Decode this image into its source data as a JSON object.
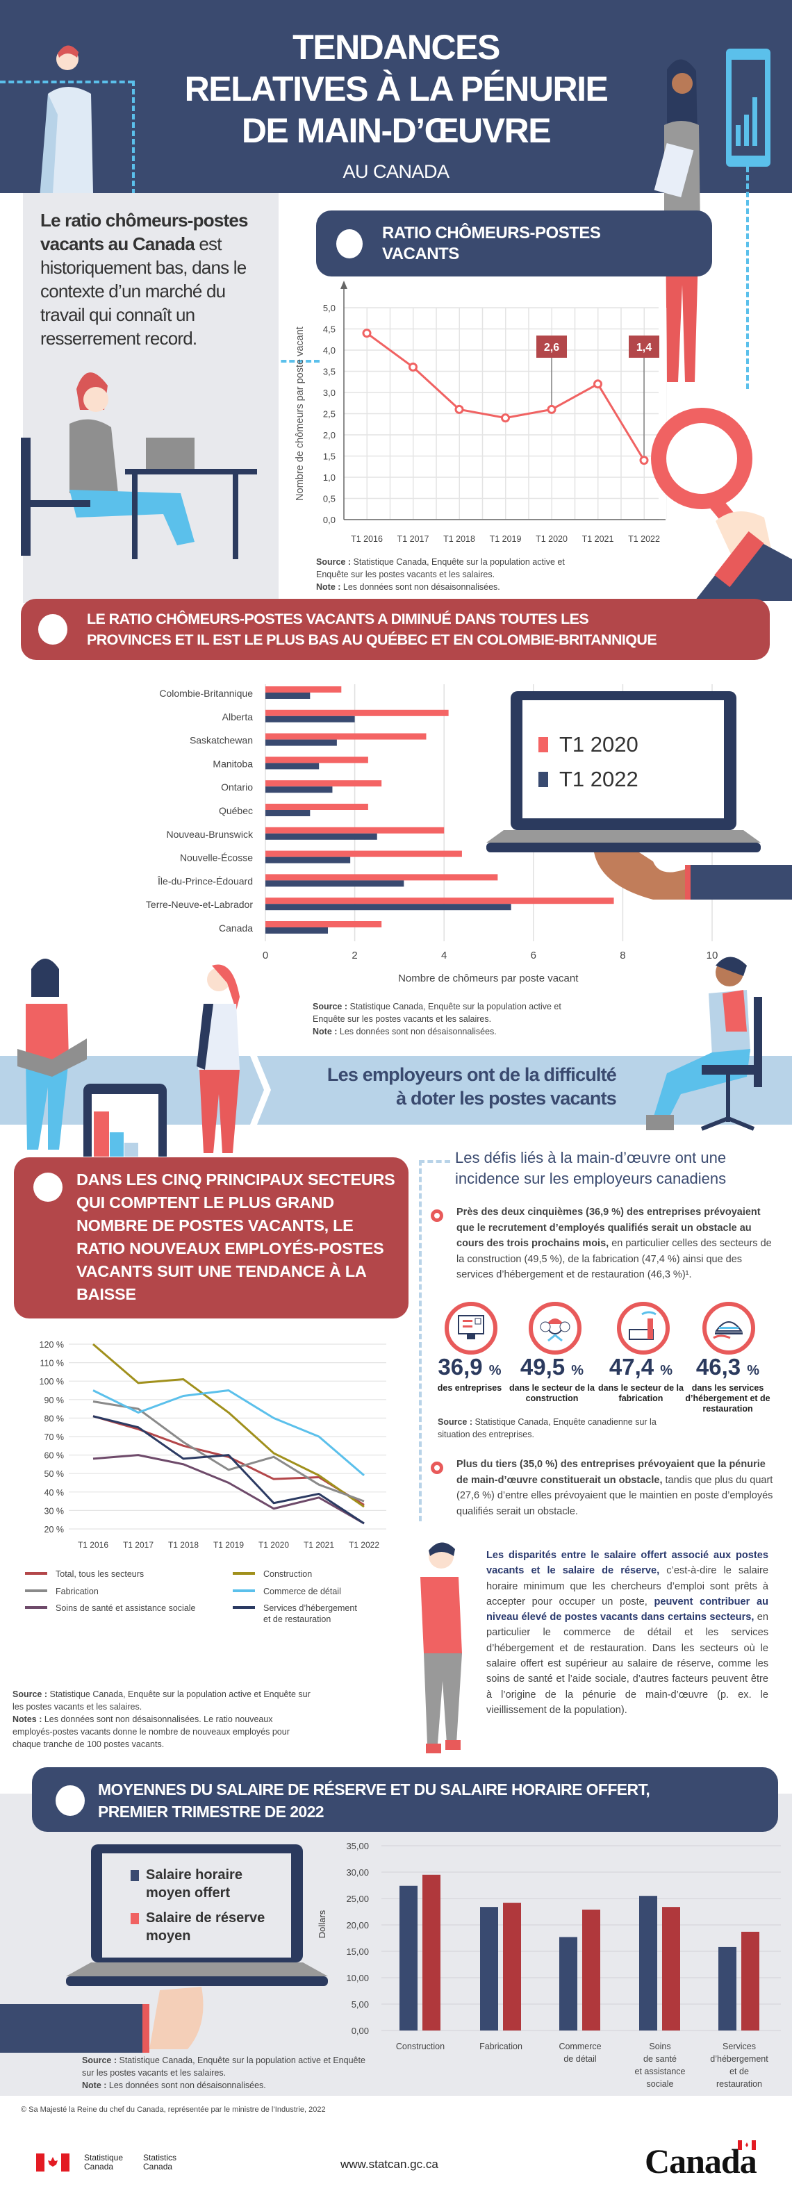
{
  "header": {
    "title_lines": [
      "TENDANCES",
      "RELATIVES À LA PÉNURIE",
      "DE MAIN-D’ŒUVRE"
    ],
    "subtitle": "AU CANADA"
  },
  "intro": {
    "bold": "Le ratio chômeurs-postes vacants au Canada",
    "rest": " est historiquement bas, dans le contexte d’un marché du travail qui connaît un resserrement record."
  },
  "section1": {
    "title_lines": [
      "RATIO CHÔMEURS-POSTES",
      "VACANTS"
    ],
    "source_label": "Source :",
    "source_text": " Statistique Canada, Enquête sur la population active et Enquête sur les postes vacants et les salaires.",
    "note_label": "Note :",
    "note_text": " Les données sont non désaisonnalisées."
  },
  "section2": {
    "title_lines": [
      "LE RATIO CHÔMEURS-POSTES VACANTS A DIMINUÉ DANS TOUTES LES",
      "PROVINCES ET IL EST LE PLUS BAS AU QUÉBEC ET EN COLOMBIE-BRITANNIQUE"
    ],
    "source_label": "Source :",
    "source_text": " Statistique Canada, Enquête sur la population active et Enquête sur les postes vacants et les salaires.",
    "note_label": "Note :",
    "note_text": " Les données sont non désaisonnalisées."
  },
  "band": {
    "lines": [
      "Les employeurs ont de la difficulté",
      "à doter les postes vacants"
    ]
  },
  "section3": {
    "title": "DANS LES CINQ PRINCIPAUX SECTEURS QUI COMPTENT LE PLUS GRAND NOMBRE DE POSTES VACANTS, LE RATIO NOUVEAUX EMPLOYÉS-POSTES VACANTS SUIT UNE TENDANCE À LA BAISSE",
    "source_label": "Source :",
    "source_text": " Statistique Canada, Enquête sur la population active et Enquête sur les postes vacants et les salaires.",
    "notes_label": "Notes :",
    "notes_text": " Les données sont non désaisonnalisées. Le ratio nouveaux employés-postes vacants donne le nombre de nouveaux employés pour chaque tranche de 100 postes vacants."
  },
  "defis": {
    "title": "Les défis liés à la main-d’œuvre ont une incidence sur les employeurs canadiens",
    "bullet1_bold": "Près des deux cinquièmes (36,9 %) des entreprises prévoyaient que le recrutement d’employés qualifiés serait un obstacle au cours des trois prochains mois,",
    "bullet1_rest": " en particulier celles des secteurs de la construction (49,5 %), de la fabrication (47,4 %) ainsi que des services d’hébergement et de restauration (46,3 %)¹.",
    "stats": [
      {
        "value": "36,9",
        "unit": "%",
        "label": "des entreprises",
        "icon": "computer-checklist-icon"
      },
      {
        "value": "49,5",
        "unit": "%",
        "label": "dans le secteur de la construction",
        "icon": "construction-workers-icon"
      },
      {
        "value": "47,4",
        "unit": "%",
        "label": "dans le secteur de la fabrication",
        "icon": "factory-icon"
      },
      {
        "value": "46,3",
        "unit": "%",
        "label": "dans les services d’hébergement et de restauration",
        "icon": "food-cloche-icon"
      }
    ],
    "source_label": "Source :",
    "source_text": " Statistique Canada, Enquête canadienne sur la situation des entreprises.",
    "bullet2_bold": "Plus du tiers (35,0 %) des entreprises prévoyaient que la pénurie de main-d’œuvre constituerait un obstacle,",
    "bullet2_rest": " tandis que plus du quart (27,6 %) d’entre elles prévoyaient que le maintien en poste d’employés qualifiés serait un obstacle."
  },
  "disparites": {
    "bold1": "Les disparités entre le salaire offert associé aux postes vacants et le salaire de réserve,",
    "text1": " c’est-à-dire le salaire horaire minimum que les chercheurs d’emploi sont prêts à accepter pour occuper un poste, ",
    "bold2": "peuvent contribuer au niveau élevé de postes vacants dans certains secteurs,",
    "text2": " en particulier le commerce de détail et les services d’hébergement et de restauration. Dans les secteurs où le salaire offert est supérieur au salaire de réserve, comme les soins de santé et l’aide sociale, d’autres facteurs peuvent être à l’origine de la pénurie de main-d’œuvre (p. ex. le vieillissement de la population)."
  },
  "section4": {
    "title_lines": [
      "MOYENNES DU SALAIRE DE RÉSERVE ET DU SALAIRE HORAIRE OFFERT,",
      "PREMIER TRIMESTRE DE 2022"
    ],
    "source_label": "Source :",
    "source_text": " Statistique Canada, Enquête sur la population active et Enquête sur les postes vacants et les salaires.",
    "note_label": "Note :",
    "note_text": " Les données sont non désaisonnalisées."
  },
  "footer": {
    "copyright": "© Sa Majesté la Reine du chef du Canada, représentée par le ministre de l’Industrie, 2022",
    "agency_fr": [
      "Statistique",
      "Canada"
    ],
    "agency_en": [
      "Statistics",
      "Canada"
    ],
    "url": "www.statcan.gc.ca",
    "wordmark": "Canada"
  },
  "colors": {
    "navy": "#3a4a6f",
    "red_banner": "#b3474a",
    "coral": "#f06262",
    "light_blue": "#5bc0eb",
    "wage_red": "#b0383c"
  },
  "chart_data": [
    {
      "type": "line",
      "ylabel": "Nombre de chômeurs par poste vacant",
      "categories": [
        "T1 2016",
        "T1 2017",
        "T1 2018",
        "T1 2019",
        "T1 2020",
        "T1 2021",
        "T1 2022"
      ],
      "values": [
        4.4,
        3.6,
        2.6,
        2.4,
        2.6,
        3.2,
        1.4
      ],
      "yticks": [
        "0,0",
        "0,5",
        "1,0",
        "1,5",
        "2,0",
        "2,5",
        "3,0",
        "3,5",
        "4,0",
        "4,5",
        "5,0"
      ],
      "ylim": [
        0,
        5
      ],
      "grid": true,
      "annotations": [
        {
          "category": "T1 2020",
          "label": "2,6"
        },
        {
          "category": "T1 2022",
          "label": "1,4"
        }
      ]
    },
    {
      "type": "bar",
      "orientation": "horizontal",
      "xlabel": "Nombre de chômeurs par poste vacant",
      "categories": [
        "Colombie-Britannique",
        "Alberta",
        "Saskatchewan",
        "Manitoba",
        "Ontario",
        "Québec",
        "Nouveau-Brunswick",
        "Nouvelle-Écosse",
        "Île-du-Prince-Édouard",
        "Terre-Neuve-et-Labrador",
        "Canada"
      ],
      "series": [
        {
          "name": "T1 2020",
          "color": "#f46464",
          "values": [
            1.7,
            4.1,
            3.6,
            2.3,
            2.6,
            2.3,
            4.0,
            4.4,
            5.2,
            7.8,
            2.6
          ]
        },
        {
          "name": "T1 2022",
          "color": "#394a70",
          "values": [
            1.0,
            2.0,
            1.6,
            1.2,
            1.5,
            1.0,
            2.5,
            1.9,
            3.1,
            5.5,
            1.4
          ]
        }
      ],
      "xticks": [
        "0",
        "2",
        "4",
        "6",
        "8",
        "10"
      ],
      "xlim": [
        0,
        10
      ],
      "grid": true,
      "legend": "right"
    },
    {
      "type": "line",
      "categories": [
        "T1 2016",
        "T1 2017",
        "T1 2018",
        "T1 2019",
        "T1 2020",
        "T1 2021",
        "T1 2022"
      ],
      "yticks": [
        "20 %",
        "30 %",
        "40 %",
        "50 %",
        "60 %",
        "70 %",
        "80 %",
        "90 %",
        "100 %",
        "110 %",
        "120 %"
      ],
      "ylim": [
        20,
        120
      ],
      "grid": true,
      "legend": "bottom",
      "series": [
        {
          "name": "Total, tous les secteurs",
          "color": "#b3474a",
          "values": [
            81,
            74,
            65,
            59,
            47,
            48,
            33
          ]
        },
        {
          "name": "Construction",
          "color": "#a0901c",
          "values": [
            120,
            99,
            101,
            83,
            61,
            49,
            32
          ]
        },
        {
          "name": "Fabrication",
          "color": "#8a8a8a",
          "values": [
            89,
            85,
            67,
            52,
            59,
            44,
            35
          ]
        },
        {
          "name": "Commerce de détail",
          "color": "#5bc0eb",
          "values": [
            95,
            83,
            92,
            95,
            80,
            70,
            49
          ]
        },
        {
          "name": "Soins de santé et assistance sociale",
          "color": "#6e4a6a",
          "values": [
            58,
            60,
            55,
            45,
            31,
            37,
            23
          ]
        },
        {
          "name": "Services d’hébergement et de restauration",
          "color": "#2b3a62",
          "values": [
            81,
            75,
            58,
            60,
            34,
            39,
            23
          ]
        }
      ]
    },
    {
      "type": "bar",
      "ylabel": "Dollars",
      "categories": [
        "Construction",
        "Fabrication",
        "Commerce de détail",
        "Soins de santé et assistance sociale",
        "Services d’hébergement et de restauration"
      ],
      "category_lines": [
        [
          "Construction"
        ],
        [
          "Fabrication"
        ],
        [
          "Commerce",
          "de détail"
        ],
        [
          "Soins",
          "de santé",
          "et assistance",
          "sociale"
        ],
        [
          "Services",
          "d’hébergement",
          "et de",
          "restauration"
        ]
      ],
      "series": [
        {
          "name": "Salaire horaire moyen offert",
          "legend_lines": [
            "Salaire horaire",
            "moyen offert"
          ],
          "color": "#394a70",
          "values": [
            27.4,
            23.4,
            17.7,
            25.5,
            15.8
          ]
        },
        {
          "name": "Salaire de réserve moyen",
          "legend_lines": [
            "Salaire de réserve",
            "moyen"
          ],
          "color": "#b0383c",
          "values": [
            29.5,
            24.2,
            22.9,
            23.4,
            18.7
          ]
        }
      ],
      "yticks": [
        "0,00",
        "5,00",
        "10,00",
        "15,00",
        "20,00",
        "25,00",
        "30,00",
        "35,00"
      ],
      "ylim": [
        0,
        35
      ],
      "grid": true,
      "legend": "left"
    }
  ]
}
